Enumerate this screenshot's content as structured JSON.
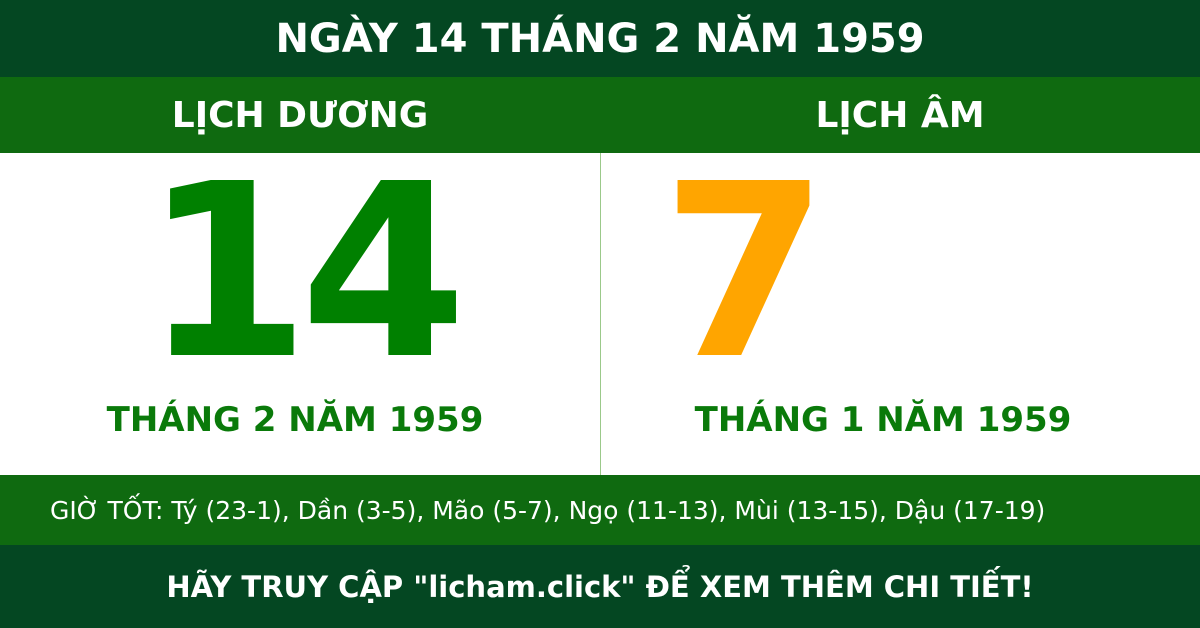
{
  "title": "NGÀY 14 THÁNG 2 NĂM 1959",
  "solar": {
    "heading": "LỊCH DƯƠNG",
    "day": "14",
    "month_year": "THÁNG 2 NĂM 1959"
  },
  "lunar": {
    "heading": "LỊCH ÂM",
    "day": "7",
    "month_year": "THÁNG 1 NĂM 1959"
  },
  "good_hours": "GIỜ TỐT: Tý (23-1), Dần (3-5), Mão (5-7), Ngọ (11-13), Mùi (13-15), Dậu (17-19)",
  "footer": "HÃY TRUY CẬP \"licham.click\" ĐỂ XEM THÊM CHI TIẾT!",
  "colors": {
    "dark_green": "#044722",
    "green": "#0f6a10",
    "solar_day": "#008000",
    "lunar_day": "#ffa500"
  }
}
